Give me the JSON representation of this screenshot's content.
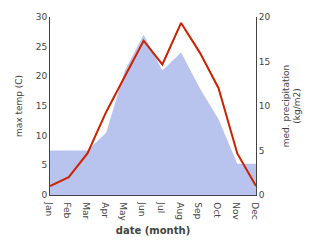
{
  "chart_data": {
    "type": "line",
    "xlabel": "date (month)",
    "ylabel": "max temp (C)",
    "y2label": "med. precipitation\n(kg/m2)",
    "categories": [
      "Jan",
      "Feb",
      "Mar",
      "Apr",
      "May",
      "Jun",
      "Jul",
      "Aug",
      "Sep",
      "Oct",
      "Nov",
      "Dec"
    ],
    "series": [
      {
        "type": "area",
        "color": "#b8c4ee",
        "axis": "y2",
        "values": [
          5.0,
          5.0,
          5.0,
          7.0,
          14.0,
          18.0,
          14.0,
          16.0,
          12.0,
          8.5,
          3.5,
          3.5
        ]
      },
      {
        "type": "line",
        "color": "#cc2200",
        "values": [
          1.5,
          3.0,
          7.0,
          14.0,
          20.0,
          26.0,
          22.0,
          29.0,
          24.0,
          18.0,
          7.0,
          1.5
        ]
      }
    ],
    "ylim": [
      0,
      30
    ],
    "yticks": [
      0,
      5,
      10,
      15,
      20,
      25,
      30
    ],
    "y2lim": [
      0,
      20
    ],
    "y2ticks": [
      0,
      5,
      10,
      15,
      20
    ],
    "grid": false
  }
}
